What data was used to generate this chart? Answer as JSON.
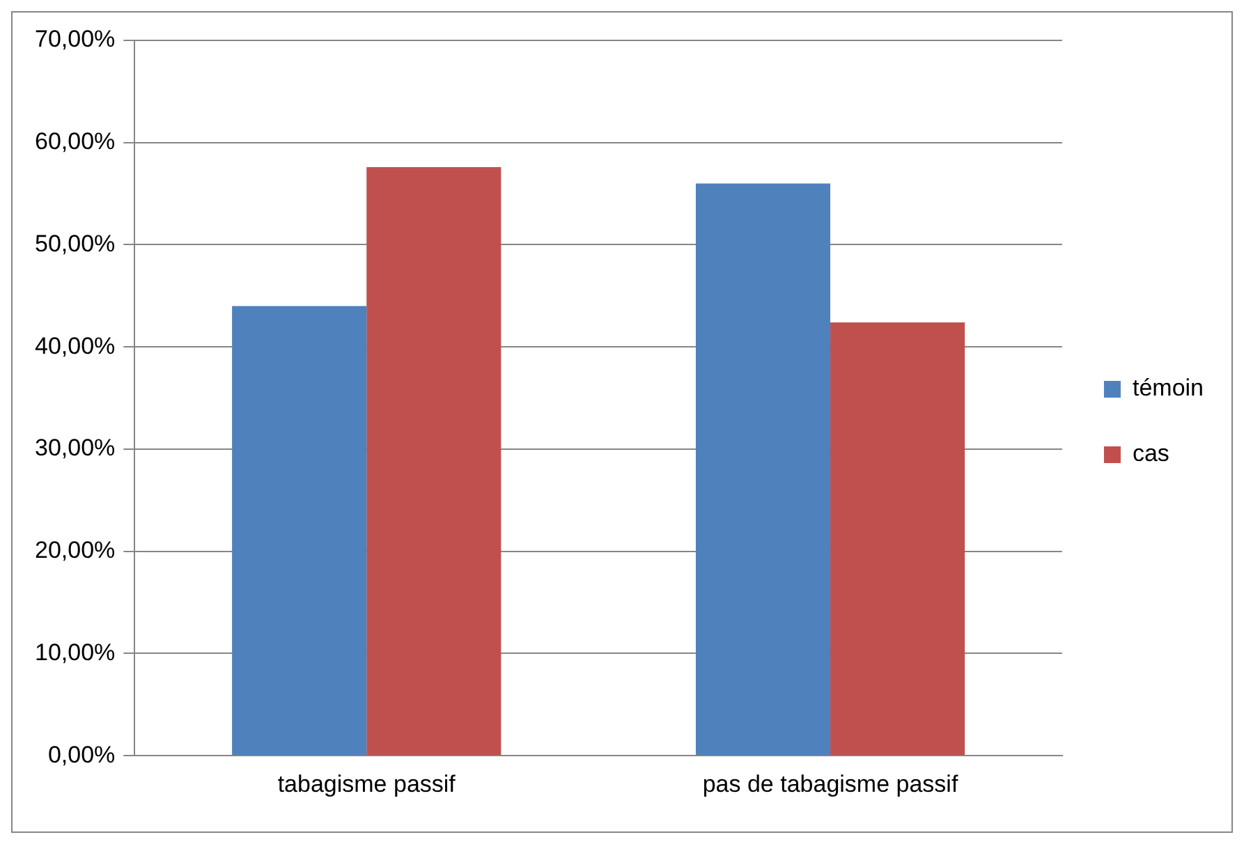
{
  "chart_data": {
    "type": "bar",
    "categories": [
      "tabagisme passif",
      "pas de tabagisme passif"
    ],
    "series": [
      {
        "name": "témoin",
        "color": "#4f81bd",
        "values": [
          44,
          56
        ]
      },
      {
        "name": "cas",
        "color": "#c0504d",
        "values": [
          57.6,
          42.4
        ]
      }
    ],
    "ylim": [
      0,
      70
    ],
    "yticks": [
      {
        "value": 0,
        "label": "0,00%"
      },
      {
        "value": 10,
        "label": "10,00%"
      },
      {
        "value": 20,
        "label": "20,00%"
      },
      {
        "value": 30,
        "label": "30,00%"
      },
      {
        "value": 40,
        "label": "40,00%"
      },
      {
        "value": 50,
        "label": "50,00%"
      },
      {
        "value": 60,
        "label": "60,00%"
      },
      {
        "value": 70,
        "label": "70,00%"
      }
    ],
    "grid": "y",
    "legend": "right"
  }
}
